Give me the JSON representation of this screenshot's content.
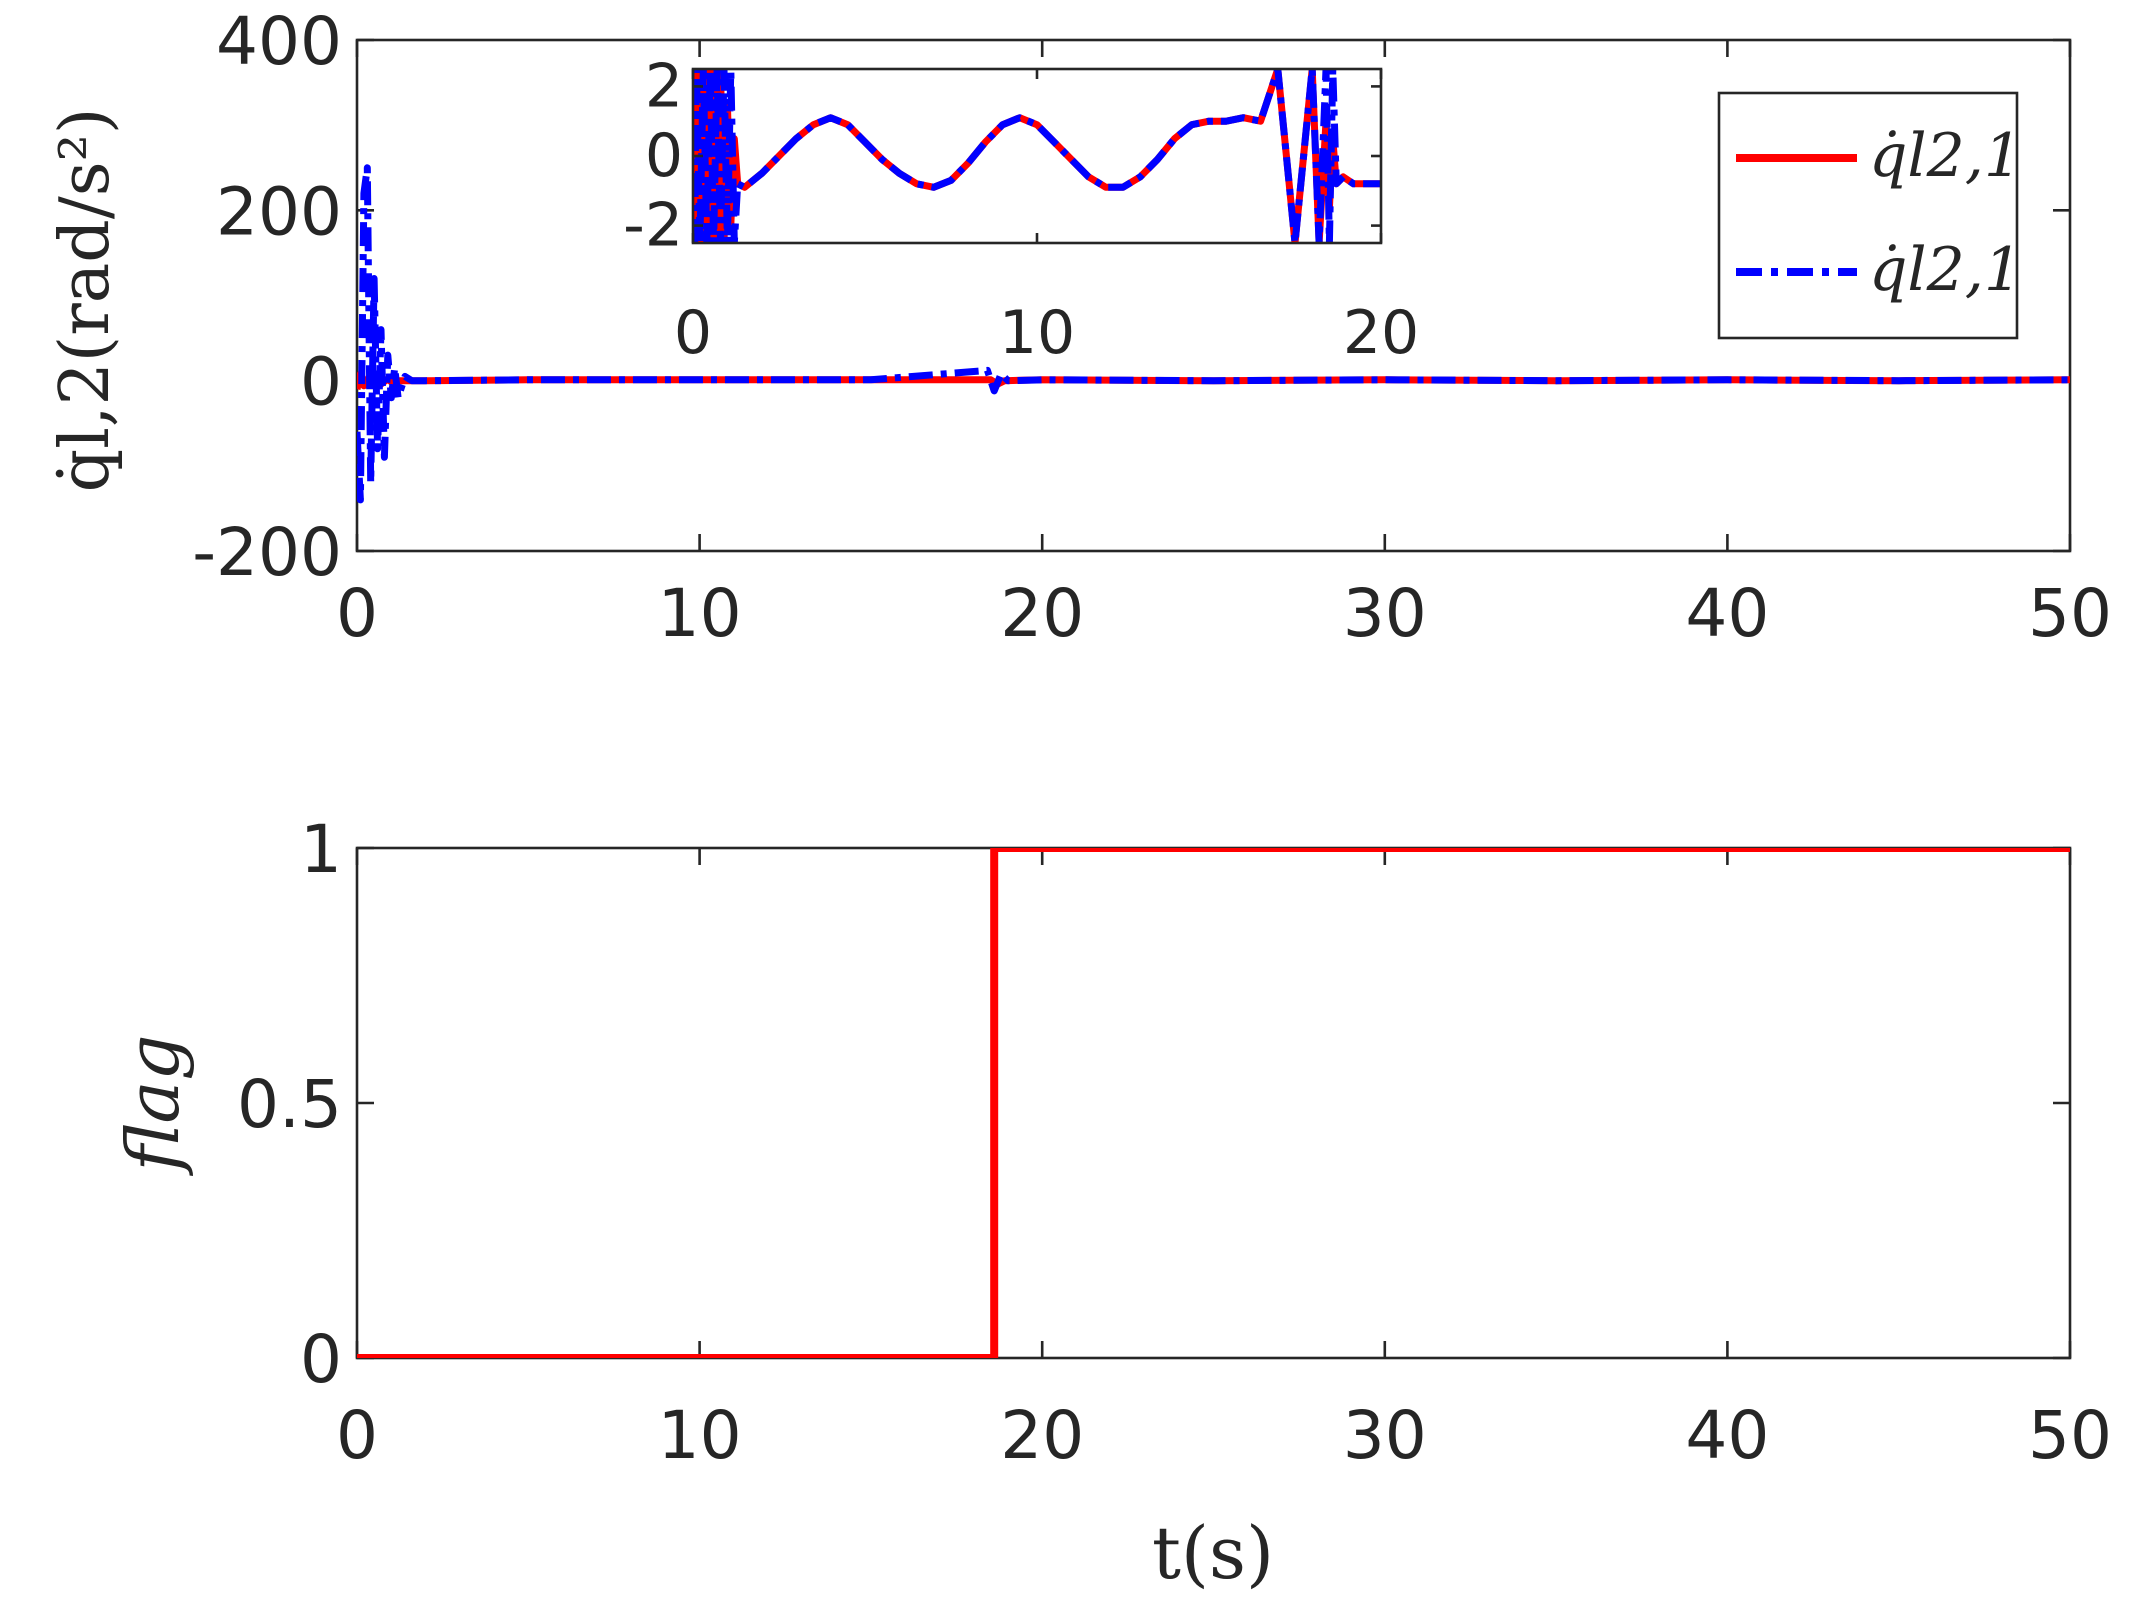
{
  "chart_data": [
    {
      "type": "line",
      "ylabel": "q̇l,2(rad/s²)",
      "xlim": [
        0,
        50
      ],
      "ylim": [
        -200,
        400
      ],
      "xticks": [
        "0",
        "10",
        "20",
        "30",
        "40",
        "50"
      ],
      "yticks": [
        "-200",
        "0",
        "200",
        "400"
      ],
      "legend": {
        "placement": "top-right",
        "entries": [
          {
            "label": "q̇l2,1",
            "color": "#ff0000",
            "style": "solid"
          },
          {
            "label": "q̇l2,1",
            "color": "#0000ff",
            "style": "dash-dot"
          }
        ]
      },
      "series": [
        {
          "color": "#ff0000",
          "style": "solid",
          "x": [
            0,
            0.1,
            0.2,
            0.35,
            0.5,
            0.7,
            0.9,
            1.1,
            1.2,
            1.5,
            2,
            5,
            10,
            15,
            18.5,
            18.7,
            18.9,
            20,
            25,
            30,
            35,
            40,
            45,
            50
          ],
          "y": [
            -10,
            8,
            -6,
            4,
            6,
            -4,
            2,
            -5,
            0,
            0,
            0,
            1,
            1,
            1,
            1,
            -4,
            0,
            1,
            0,
            1,
            0,
            1,
            0,
            1
          ]
        },
        {
          "color": "#0000ff",
          "style": "dash-dot",
          "x": [
            0,
            0.1,
            0.2,
            0.3,
            0.4,
            0.5,
            0.6,
            0.7,
            0.8,
            0.9,
            1.0,
            1.1,
            1.2,
            1.4,
            1.6,
            2,
            5,
            10,
            15,
            18.4,
            18.6,
            18.8,
            19,
            20,
            25,
            30,
            35,
            40,
            45,
            50
          ],
          "y": [
            -60,
            -140,
            220,
            250,
            -120,
            120,
            -80,
            60,
            -90,
            30,
            -20,
            15,
            -20,
            5,
            0,
            0,
            1,
            1,
            1,
            12,
            -12,
            8,
            0,
            1,
            0,
            1,
            0,
            1,
            0,
            1
          ]
        }
      ],
      "inset": {
        "xlim": [
          0,
          20
        ],
        "ylim": [
          -2.5,
          2.5
        ],
        "xticks": [
          "0",
          "10",
          "20"
        ],
        "yticks": [
          "-2",
          "0",
          "2"
        ],
        "series": [
          {
            "color": "#ff0000",
            "style": "solid",
            "x": [
              0.05,
              0.1,
              0.2,
              0.3,
              0.4,
              0.5,
              0.6,
              0.7,
              0.8,
              0.9,
              1.0,
              1.1,
              1.2,
              1.3,
              1.5,
              2,
              2.5,
              3,
              3.5,
              4,
              4.5,
              5,
              5.5,
              6,
              6.5,
              7,
              7.5,
              8,
              8.5,
              9,
              9.5,
              10,
              10.5,
              11,
              11.5,
              12,
              12.5,
              13,
              13.5,
              14,
              14.5,
              15,
              15.5,
              16,
              16.5,
              17,
              17.5,
              18,
              18.2,
              18.4,
              18.5,
              18.6,
              18.7,
              18.9,
              19.2,
              19.6,
              20
            ],
            "y": [
              2.5,
              -2.5,
              2.5,
              -2.5,
              2.5,
              -2.5,
              2.5,
              -2.5,
              2.5,
              -2.5,
              1.5,
              -2.0,
              0.5,
              -0.8,
              -0.9,
              -0.5,
              0,
              0.5,
              0.9,
              1.1,
              0.9,
              0.4,
              -0.1,
              -0.5,
              -0.8,
              -0.9,
              -0.7,
              -0.2,
              0.4,
              0.9,
              1.1,
              0.9,
              0.4,
              -0.1,
              -0.6,
              -0.9,
              -0.9,
              -0.6,
              -0.1,
              0.5,
              0.9,
              1.0,
              1.0,
              1.1,
              1.0,
              2.5,
              -2.5,
              2.5,
              -2.5,
              1.0,
              -1.5,
              0.5,
              -0.8,
              -0.6,
              -0.8,
              -0.8,
              -0.8
            ]
          },
          {
            "color": "#0000ff",
            "style": "dash-dot",
            "x": [
              0.05,
              0.1,
              0.2,
              0.3,
              0.4,
              0.5,
              0.6,
              0.7,
              0.8,
              0.9,
              1.0,
              1.1,
              1.2,
              1.3,
              1.5,
              2,
              2.5,
              3,
              3.5,
              4,
              4.5,
              5,
              5.5,
              6,
              6.5,
              7,
              7.5,
              8,
              8.5,
              9,
              9.5,
              10,
              10.5,
              11,
              11.5,
              12,
              12.5,
              13,
              13.5,
              14,
              14.5,
              15,
              15.5,
              16,
              16.5,
              17,
              17.5,
              18,
              18.2,
              18.4,
              18.5,
              18.6,
              18.7,
              18.9,
              19.2,
              19.6,
              20
            ],
            "y": [
              -2.5,
              2.5,
              -2.5,
              2.5,
              -2.5,
              2.5,
              -2.5,
              2.5,
              -2.5,
              2.5,
              -2.5,
              2.5,
              -2.5,
              -0.8,
              -0.9,
              -0.5,
              0,
              0.5,
              0.9,
              1.1,
              0.9,
              0.4,
              -0.1,
              -0.5,
              -0.8,
              -0.9,
              -0.7,
              -0.2,
              0.4,
              0.9,
              1.1,
              0.9,
              0.4,
              -0.1,
              -0.6,
              -0.9,
              -0.9,
              -0.6,
              -0.1,
              0.5,
              0.9,
              1.0,
              1.0,
              1.1,
              1.0,
              2.5,
              -2.5,
              2.5,
              -2.5,
              2.5,
              -2.5,
              2.5,
              -0.8,
              -0.6,
              -0.8,
              -0.8,
              -0.8
            ]
          }
        ]
      }
    },
    {
      "type": "line",
      "ylabel": "flag",
      "xlabel": "t(s)",
      "xlim": [
        0,
        50
      ],
      "ylim": [
        0,
        1
      ],
      "xticks": [
        "0",
        "10",
        "20",
        "30",
        "40",
        "50"
      ],
      "yticks": [
        "0",
        "0.5",
        "1"
      ],
      "series": [
        {
          "color": "#ff0000",
          "style": "solid",
          "x": [
            0,
            18.6,
            18.6,
            50
          ],
          "y": [
            0,
            0,
            1,
            1
          ]
        }
      ]
    }
  ]
}
